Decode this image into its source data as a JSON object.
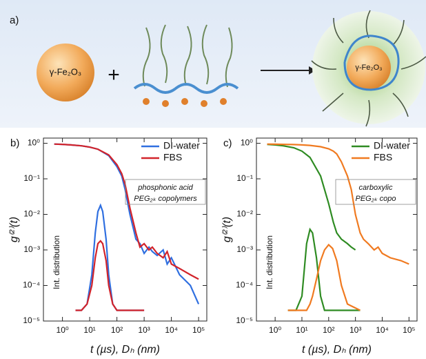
{
  "schematic": {
    "label": "a)",
    "core_label": "γ-Fe₂O₃",
    "plus": "+",
    "product_label": "γ-Fe₂O₃"
  },
  "chart_data": [
    {
      "type": "line",
      "panel_label": "b)",
      "xlabel": "t (µs), Dₕ (nm)",
      "ylabel": "g⁽²⁾(t)",
      "xlog": true,
      "ylog": true,
      "legend": "upper right",
      "annotation": [
        "phosphonic acid",
        "PEG₂ₖ copolymers"
      ],
      "inset_label": "Int. distribution",
      "xlim": [
        0.2,
        200000
      ],
      "ylim": [
        1e-05,
        1.4
      ],
      "xticks": [
        {
          "value": 1,
          "label": "10⁰"
        },
        {
          "value": 10,
          "label": "10¹"
        },
        {
          "value": 100,
          "label": "10²"
        },
        {
          "value": 1000,
          "label": "10³"
        },
        {
          "value": 10000,
          "label": "10⁴"
        },
        {
          "value": 100000,
          "label": "10⁵"
        }
      ],
      "yticks": [
        {
          "value": 1,
          "label": "10⁰"
        },
        {
          "value": 0.1,
          "label": "10⁻¹"
        },
        {
          "value": 0.01,
          "label": "10⁻²"
        },
        {
          "value": 0.001,
          "label": "10⁻³"
        },
        {
          "value": 0.0001,
          "label": "10⁻⁴"
        },
        {
          "value": 1e-05,
          "label": "10⁻⁵"
        }
      ],
      "series": [
        {
          "name": "DI-water",
          "color": "#2f6fe0",
          "x": [
            0.5,
            1,
            2,
            5,
            10,
            20,
            50,
            100,
            150,
            200,
            300,
            500,
            700,
            1000,
            1500,
            2000,
            3000,
            5000,
            7000,
            10000,
            20000,
            50000,
            100000
          ],
          "values": [
            0.95,
            0.93,
            0.9,
            0.85,
            0.78,
            0.68,
            0.45,
            0.22,
            0.12,
            0.05,
            0.01,
            0.002,
            0.0015,
            0.0008,
            0.0012,
            0.0009,
            0.0007,
            0.001,
            0.0004,
            0.0006,
            0.0002,
            0.0001,
            3e-05
          ]
        },
        {
          "name": "FBS",
          "color": "#d2232a",
          "x": [
            0.5,
            1,
            2,
            5,
            10,
            20,
            50,
            100,
            150,
            200,
            300,
            500,
            700,
            1000,
            1500,
            2000,
            3000,
            5000,
            7000,
            10000,
            20000,
            50000,
            100000
          ],
          "values": [
            0.95,
            0.93,
            0.9,
            0.85,
            0.78,
            0.68,
            0.47,
            0.25,
            0.14,
            0.07,
            0.015,
            0.003,
            0.0012,
            0.0015,
            0.001,
            0.0012,
            0.0008,
            0.0006,
            0.0009,
            0.0004,
            0.0003,
            0.0002,
            0.00015
          ]
        }
      ],
      "distributions": [
        {
          "color": "#2f6fe0",
          "x": [
            3,
            5,
            8,
            12,
            16,
            20,
            25,
            30,
            40,
            50,
            70,
            100,
            200,
            1000
          ],
          "values": [
            2e-05,
            2e-05,
            3e-05,
            0.0002,
            0.003,
            0.012,
            0.018,
            0.012,
            0.002,
            0.0002,
            3e-05,
            2e-05,
            2e-05,
            2e-05
          ]
        },
        {
          "color": "#d2232a",
          "x": [
            3,
            5,
            8,
            12,
            16,
            20,
            25,
            30,
            40,
            50,
            70,
            100,
            200,
            1000
          ],
          "values": [
            2e-05,
            2e-05,
            3e-05,
            0.0001,
            0.0006,
            0.0015,
            0.0018,
            0.0015,
            0.0005,
            0.0001,
            3e-05,
            2e-05,
            2e-05,
            2e-05
          ]
        }
      ]
    },
    {
      "type": "line",
      "panel_label": "c)",
      "xlabel": "t (µs), Dₕ (nm)",
      "ylabel": "g⁽²⁾(t)",
      "xlog": true,
      "ylog": true,
      "legend": "upper right",
      "annotation": [
        "carboxylic",
        "PEG₂ₖ copo"
      ],
      "inset_label": "Int. distribution",
      "xlim": [
        0.2,
        200000
      ],
      "ylim": [
        1e-05,
        1.4
      ],
      "xticks": [
        {
          "value": 1,
          "label": "10⁰"
        },
        {
          "value": 10,
          "label": "10¹"
        },
        {
          "value": 100,
          "label": "10²"
        },
        {
          "value": 1000,
          "label": "10³"
        },
        {
          "value": 10000,
          "label": "10⁴"
        },
        {
          "value": 100000,
          "label": "10⁵"
        }
      ],
      "yticks": [
        {
          "value": 1,
          "label": "10⁰"
        },
        {
          "value": 0.1,
          "label": "10⁻¹"
        },
        {
          "value": 0.01,
          "label": "10⁻²"
        },
        {
          "value": 0.001,
          "label": "10⁻³"
        },
        {
          "value": 0.0001,
          "label": "10⁻⁴"
        },
        {
          "value": 1e-05,
          "label": "10⁻⁵"
        }
      ],
      "series": [
        {
          "name": "DI-water",
          "color": "#2e8b22",
          "x": [
            0.5,
            1,
            2,
            5,
            10,
            20,
            50,
            100,
            150,
            200,
            300,
            500,
            700,
            1000
          ],
          "values": [
            0.93,
            0.9,
            0.85,
            0.75,
            0.6,
            0.4,
            0.12,
            0.02,
            0.006,
            0.003,
            0.002,
            0.0015,
            0.0012,
            0.001
          ]
        },
        {
          "name": "FBS",
          "color": "#f07a20",
          "x": [
            0.5,
            1,
            2,
            5,
            10,
            20,
            50,
            100,
            150,
            200,
            300,
            500,
            700,
            1000,
            1500,
            2000,
            3000,
            5000,
            7000,
            10000,
            20000,
            50000,
            100000
          ],
          "values": [
            0.95,
            0.94,
            0.93,
            0.92,
            0.9,
            0.87,
            0.8,
            0.7,
            0.6,
            0.5,
            0.3,
            0.12,
            0.05,
            0.01,
            0.003,
            0.002,
            0.0015,
            0.001,
            0.0012,
            0.0008,
            0.0006,
            0.0005,
            0.0004
          ]
        }
      ],
      "distributions": [
        {
          "color": "#2e8b22",
          "x": [
            3,
            6,
            10,
            15,
            20,
            25,
            35,
            50,
            70,
            100,
            140,
            200,
            300,
            500,
            1500
          ],
          "values": [
            2e-05,
            2e-05,
            5e-05,
            0.0015,
            0.0038,
            0.003,
            0.0006,
            5e-05,
            2e-05,
            2e-05,
            2e-05,
            2e-05,
            2e-05,
            2e-05,
            2e-05
          ]
        },
        {
          "color": "#f07a20",
          "x": [
            3,
            6,
            10,
            15,
            20,
            25,
            35,
            50,
            70,
            100,
            140,
            200,
            300,
            500,
            1500
          ],
          "values": [
            2e-05,
            2e-05,
            2e-05,
            2e-05,
            3e-05,
            5e-05,
            0.00015,
            0.0005,
            0.001,
            0.0014,
            0.0011,
            0.0005,
            0.0001,
            3e-05,
            2e-05
          ]
        }
      ]
    }
  ]
}
